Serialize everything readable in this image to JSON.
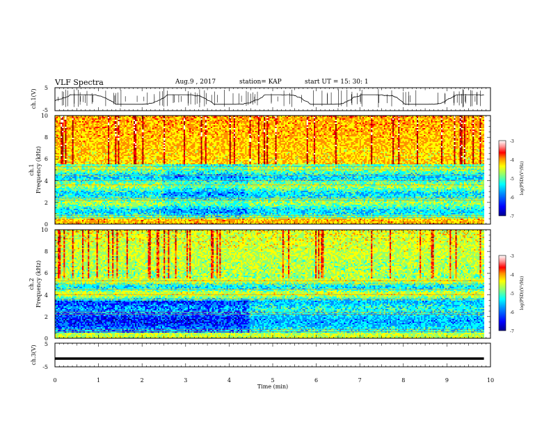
{
  "header": {
    "title": "VLF Spectra",
    "date": "Aug.9 , 2017",
    "station": "station= KAP",
    "start": "start UT = 15: 30: 1"
  },
  "chart_data": [
    {
      "type": "line",
      "panel": "ch1-waveform",
      "ylabel": "ch.1(V)",
      "ylim": [
        -5,
        5
      ],
      "y_ticks": [
        "5",
        "-5"
      ],
      "xlim": [
        0,
        10
      ]
    },
    {
      "type": "heatmap",
      "panel": "ch1-spectrogram",
      "ylabel_channel": "ch.1",
      "ylabel": "Frequency (kHz)",
      "ylim": [
        0,
        10
      ],
      "y_ticks": [
        "0",
        "2",
        "4",
        "6",
        "8",
        "10"
      ],
      "xlim": [
        0,
        10
      ],
      "colorbar": {
        "label": "log(PSD)(V²/Hz)",
        "range": [
          -7,
          -3
        ],
        "ticks": [
          "-3",
          "-4",
          "-5",
          "-6",
          "-7"
        ]
      }
    },
    {
      "type": "heatmap",
      "panel": "ch2-spectrogram",
      "ylabel_channel": "ch.2",
      "ylabel": "Frequency (kHz)",
      "ylim": [
        0,
        10
      ],
      "y_ticks": [
        "0",
        "2",
        "4",
        "6",
        "8",
        "10"
      ],
      "xlim": [
        0,
        10
      ],
      "colorbar": {
        "label": "log(PSD)(V²/Hz)",
        "range": [
          -7,
          -3
        ],
        "ticks": [
          "-3",
          "-4",
          "-5",
          "-6",
          "-7"
        ]
      }
    },
    {
      "type": "line",
      "panel": "ch3-waveform",
      "ylabel": "ch.3(V)",
      "ylim": [
        -5,
        5
      ],
      "y_ticks": [
        "5",
        "-5"
      ],
      "level": -1.5,
      "xlim": [
        0,
        10
      ]
    }
  ],
  "xaxis": {
    "label": "Time (min)",
    "ticks": [
      "0",
      "1",
      "2",
      "3",
      "4",
      "5",
      "6",
      "7",
      "8",
      "9",
      "10"
    ],
    "data_end": 9.85
  },
  "colors": {
    "axis": "#000000",
    "trace": "#000000",
    "colormap": [
      "#000090",
      "#0000ff",
      "#0090ff",
      "#00ffff",
      "#90ff70",
      "#ffff00",
      "#ff9000",
      "#ff0000",
      "#a00000",
      "#ffffff"
    ]
  }
}
